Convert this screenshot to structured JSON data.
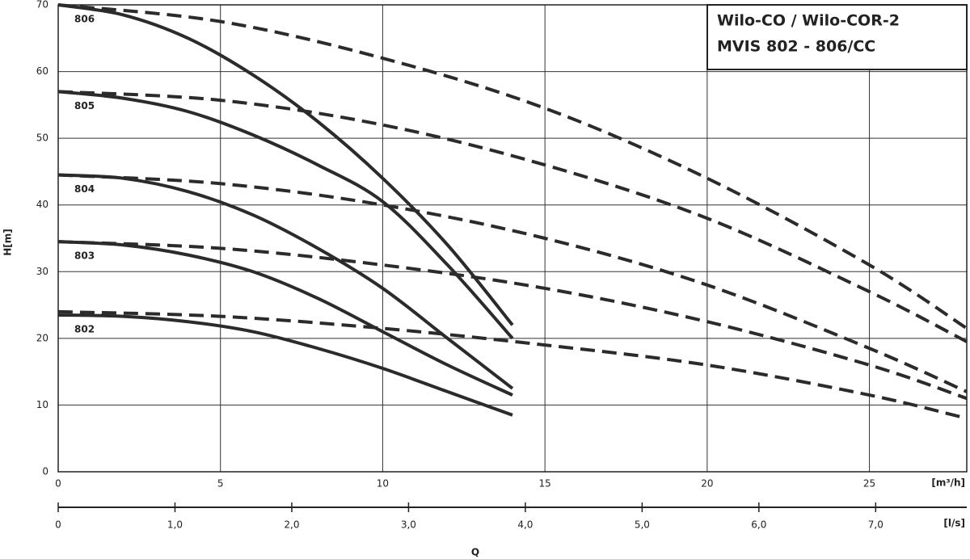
{
  "chart_data": {
    "type": "line",
    "title_lines": [
      "Wilo-CO / Wilo-COR-2",
      "MVIS 802 - 806/CC"
    ],
    "y_label": "H[m]",
    "x_label": "Q",
    "x_unit": "[m³/h]",
    "x2_unit": "[l/s]",
    "xlim": [
      0,
      28
    ],
    "xticks": [
      0,
      5,
      10,
      15,
      20,
      25
    ],
    "ylim": [
      0,
      70
    ],
    "yticks": [
      0,
      10,
      20,
      30,
      40,
      50,
      60,
      70
    ],
    "x2lim": [
      0,
      7.78
    ],
    "x2ticks": [
      0,
      {
        "value": 1,
        "label": "1,0"
      },
      {
        "value": 2,
        "label": "2,0"
      },
      {
        "value": 3,
        "label": "3,0"
      },
      {
        "value": 4,
        "label": "4,0"
      },
      {
        "value": 5,
        "label": "5,0"
      },
      {
        "value": 6,
        "label": "6,0"
      },
      {
        "value": 7,
        "label": "7,0"
      }
    ],
    "grid": true,
    "color": "#2b2b2b",
    "series": [
      {
        "name": "806",
        "style": "solid",
        "x": [
          0,
          2,
          4,
          6,
          8,
          10,
          12,
          14
        ],
        "values": [
          70,
          68.5,
          65,
          59.5,
          52.5,
          44,
          34,
          22
        ]
      },
      {
        "name": "805",
        "style": "solid",
        "x": [
          0,
          2,
          4,
          6,
          8,
          10,
          12,
          14
        ],
        "values": [
          57,
          56,
          54,
          50.5,
          46,
          40.5,
          31,
          20
        ]
      },
      {
        "name": "804",
        "style": "solid",
        "x": [
          0,
          2,
          4,
          6,
          8,
          10,
          12,
          14
        ],
        "values": [
          44.5,
          44,
          42,
          38.5,
          33.5,
          27.5,
          20,
          12.5
        ]
      },
      {
        "name": "803",
        "style": "solid",
        "x": [
          0,
          2,
          4,
          6,
          8,
          10,
          12,
          14
        ],
        "values": [
          34.5,
          34,
          32.5,
          30,
          26,
          21,
          16,
          11.5
        ]
      },
      {
        "name": "802",
        "style": "solid",
        "x": [
          0,
          2,
          4,
          6,
          8,
          10,
          12,
          14
        ],
        "values": [
          23.5,
          23.3,
          22.5,
          21,
          18.5,
          15.5,
          12,
          8.5
        ]
      },
      {
        "style": "dashed",
        "x": [
          0,
          5,
          10,
          15,
          20,
          25,
          28
        ],
        "values": [
          70,
          67.5,
          62,
          54.5,
          44,
          31,
          21.5
        ]
      },
      {
        "style": "dashed",
        "x": [
          0,
          5,
          10,
          15,
          20,
          25,
          28
        ],
        "values": [
          57,
          55.7,
          52,
          46,
          38,
          27,
          19.5
        ]
      },
      {
        "style": "dashed",
        "x": [
          0,
          5,
          10,
          15,
          20,
          25,
          28
        ],
        "values": [
          44.5,
          43.2,
          40,
          35,
          28,
          18.5,
          12
        ]
      },
      {
        "style": "dashed",
        "x": [
          0,
          5,
          10,
          15,
          20,
          25,
          28
        ],
        "values": [
          34.5,
          33.5,
          31,
          27.5,
          22.5,
          16,
          11
        ]
      },
      {
        "style": "dashed",
        "x": [
          0,
          5,
          10,
          15,
          20,
          25,
          28
        ],
        "values": [
          24,
          23.3,
          21.5,
          19,
          16,
          11.5,
          8
        ]
      }
    ]
  }
}
